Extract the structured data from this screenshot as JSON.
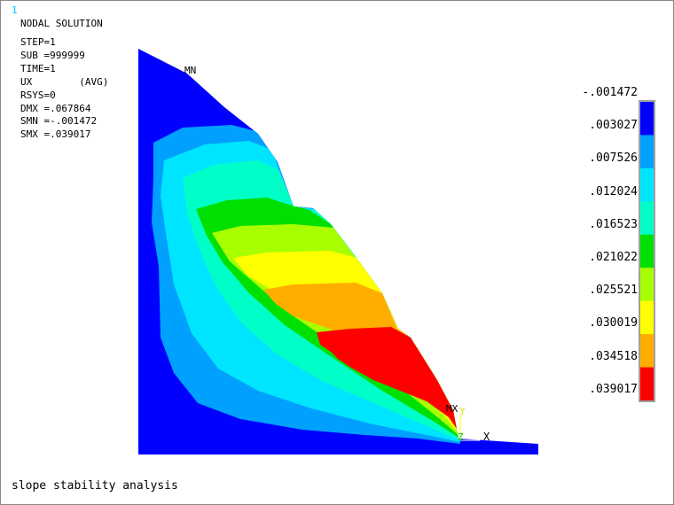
{
  "window_number": "1",
  "title": "NODAL SOLUTION",
  "info": [
    "STEP=1",
    "SUB =999999",
    "TIME=1",
    "UX        (AVG)",
    "RSYS=0",
    "DMX =.067864",
    "SMN =-.001472",
    "SMX =.039017"
  ],
  "labels": {
    "min_marker": "MN",
    "max_marker": "MX",
    "axis_x": "X",
    "axis_y": "Y",
    "axis_z": "Z"
  },
  "legend": {
    "values": [
      "-.001472",
      ".003027",
      ".007526",
      ".012024",
      ".016523",
      ".021022",
      ".025521",
      ".030019",
      ".034518",
      ".039017"
    ],
    "colors": [
      "#0000ff",
      "#00a0ff",
      "#00e5ff",
      "#00ffc8",
      "#00e000",
      "#a8ff00",
      "#ffff00",
      "#ffae00",
      "#ff0000"
    ]
  },
  "caption": "slope stability analysis"
}
